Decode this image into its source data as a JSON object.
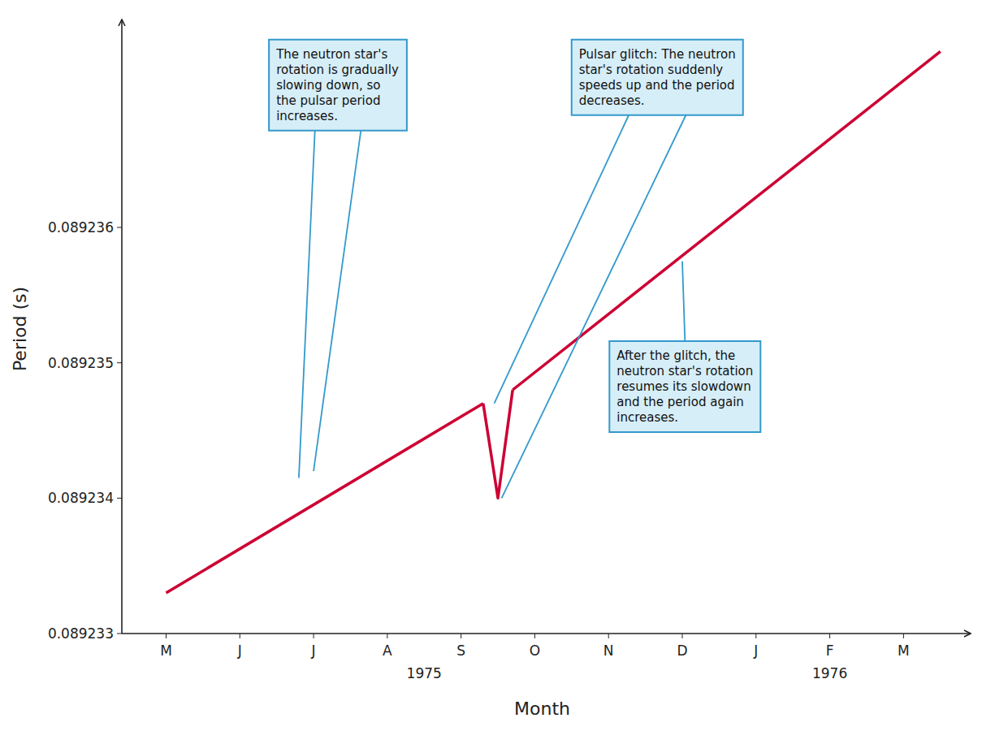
{
  "chart_data": {
    "type": "line",
    "xlabel": "Month",
    "ylabel": "Period (s)",
    "xlim": [
      -0.6,
      10.8
    ],
    "xticks": [
      {
        "value": 0,
        "label": "M"
      },
      {
        "value": 1,
        "label": "J"
      },
      {
        "value": 2,
        "label": "J"
      },
      {
        "value": 3,
        "label": "A"
      },
      {
        "value": 4,
        "label": "S"
      },
      {
        "value": 5,
        "label": "O"
      },
      {
        "value": 6,
        "label": "N"
      },
      {
        "value": 7,
        "label": "D"
      },
      {
        "value": 8,
        "label": "J"
      },
      {
        "value": 9,
        "label": "F"
      },
      {
        "value": 10,
        "label": "M"
      }
    ],
    "ylim": [
      0.089233,
      0.0892375
    ],
    "yticks": [
      0.089233,
      0.089234,
      0.089235,
      0.089236
    ],
    "grid": false,
    "series": [
      {
        "x": [
          0,
          4.3
        ],
        "values": [
          0.0892333,
          0.0892347
        ],
        "color": "#CC0033"
      },
      {
        "x": [
          4.3,
          4.5,
          4.7
        ],
        "values": [
          0.0892347,
          0.089234,
          0.0892348
        ],
        "color": "#CC0033"
      },
      {
        "x": [
          4.7,
          10.5
        ],
        "values": [
          0.0892348,
          0.0892373
        ],
        "color": "#CC0033"
      }
    ],
    "annotations": [
      {
        "text": "The neutron star's\nrotation is gradually\nslowing down, so\nthe pulsar period\nincreases.",
        "color": "#3399CC",
        "points": [
          {
            "x": 1.8,
            "y": 0.08923415
          },
          {
            "x": 2.0,
            "y": 0.0892342
          }
        ]
      },
      {
        "text": "Pulsar glitch: The neutron\nstar's rotation suddenly\nspeeds up and the period\ndecreases.",
        "color": "#3399CC",
        "points": [
          {
            "x": 4.45,
            "y": 0.0892347
          },
          {
            "x": 4.55,
            "y": 0.089234
          }
        ]
      },
      {
        "text": "After the glitch, the\nneutron star's rotation\nresumes its slowdown\nand the period again\nincreases.",
        "color": "#3399CC",
        "points": [
          {
            "x": 7.0,
            "y": 0.08923575
          }
        ]
      }
    ],
    "year_labels": [
      {
        "text": "1975",
        "x": 3.5
      },
      {
        "text": "1976",
        "x": 9.0
      }
    ]
  }
}
